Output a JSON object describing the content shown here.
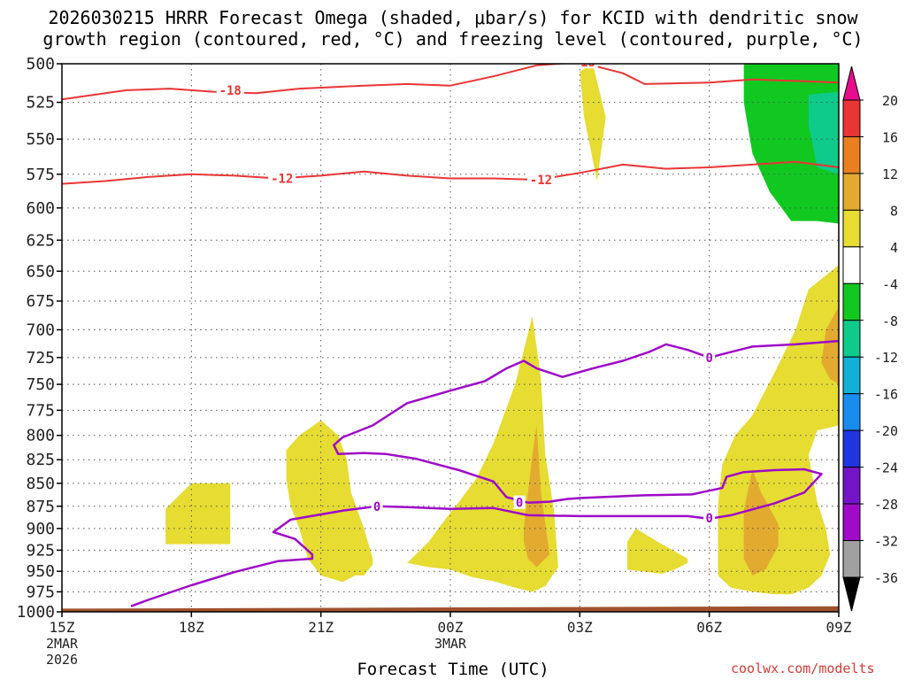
{
  "title_line1": "2026030215 HRRR Forecast Omega (shaded, μbar/s) for KCID with dendritic snow",
  "title_line2": "growth region (contoured, red, °C) and freezing level (contoured, purple, °C)",
  "xlabel": "Forecast Time (UTC)",
  "credit": "coolwx.com/modelts",
  "chart_data": {
    "type": "contour",
    "y_axis": {
      "label": "",
      "unit": "mb",
      "reversed": true,
      "range": [
        500,
        1000
      ],
      "ticks": [
        500,
        525,
        550,
        575,
        600,
        625,
        650,
        675,
        700,
        725,
        750,
        775,
        800,
        825,
        850,
        875,
        900,
        925,
        950,
        975,
        1000
      ],
      "scale": "log"
    },
    "x_axis": {
      "range_hours": [
        0,
        18
      ],
      "ticks": [
        {
          "hour": 0,
          "label": "15Z",
          "sub1": "2MAR",
          "sub2": "2026"
        },
        {
          "hour": 3,
          "label": "18Z",
          "sub1": "",
          "sub2": ""
        },
        {
          "hour": 6,
          "label": "21Z",
          "sub1": "",
          "sub2": ""
        },
        {
          "hour": 9,
          "label": "00Z",
          "sub1": "3MAR",
          "sub2": ""
        },
        {
          "hour": 12,
          "label": "03Z",
          "sub1": "",
          "sub2": ""
        },
        {
          "hour": 15,
          "label": "06Z",
          "sub1": "",
          "sub2": ""
        },
        {
          "hour": 18,
          "label": "09Z",
          "sub1": "",
          "sub2": ""
        }
      ],
      "grid": "dotted"
    },
    "colorbar": {
      "labels": [
        "20",
        "16",
        "12",
        "8",
        "4",
        "-4",
        "-8",
        "-12",
        "-16",
        "-20",
        "-24",
        "-28",
        "-32",
        "-36"
      ],
      "colors": [
        "#e60e8c",
        "#ea3535",
        "#ea7f20",
        "#e3aa30",
        "#e6dc32",
        "#ffffff",
        "#10c820",
        "#0ecb8c",
        "#12b0d6",
        "#1a8cf0",
        "#2035e0",
        "#7414c8",
        "#a00ac8",
        "#a0a0a0",
        "#000000"
      ]
    },
    "omega_shading": [
      {
        "level": "4 to 8",
        "color": "#e6dc32",
        "polygons": [
          [
            [
              2.4,
              878
            ],
            [
              3.0,
              850
            ],
            [
              3.9,
              850
            ],
            [
              3.9,
              918
            ],
            [
              2.4,
              918
            ]
          ],
          [
            [
              5.2,
              845
            ],
            [
              5.2,
              815
            ],
            [
              5.5,
              800
            ],
            [
              6.0,
              785
            ],
            [
              6.4,
              800
            ],
            [
              6.6,
              825
            ],
            [
              6.7,
              860
            ],
            [
              7.0,
              900
            ],
            [
              7.2,
              935
            ],
            [
              7.2,
              942
            ],
            [
              7.0,
              955
            ],
            [
              6.8,
              955
            ],
            [
              6.5,
              963
            ],
            [
              6.0,
              955
            ],
            [
              5.7,
              935
            ],
            [
              5.5,
              900
            ],
            [
              5.3,
              875
            ]
          ],
          [
            [
              8.0,
              940
            ],
            [
              8.2,
              930
            ],
            [
              8.5,
              915
            ],
            [
              8.8,
              895
            ],
            [
              9.2,
              870
            ],
            [
              9.6,
              845
            ],
            [
              10.0,
              808
            ],
            [
              10.5,
              750
            ],
            [
              10.9,
              688
            ],
            [
              11.1,
              745
            ],
            [
              11.2,
              820
            ],
            [
              11.4,
              880
            ],
            [
              11.5,
              945
            ],
            [
              11.2,
              968
            ],
            [
              10.9,
              975
            ],
            [
              10.5,
              970
            ],
            [
              10.0,
              962
            ],
            [
              9.5,
              957
            ],
            [
              9.0,
              948
            ],
            [
              8.5,
              945
            ],
            [
              8.2,
              942
            ]
          ],
          [
            [
              12.0,
              505
            ],
            [
              12.3,
              500
            ],
            [
              12.6,
              535
            ],
            [
              12.4,
              580
            ],
            [
              12.1,
              535
            ],
            [
              12.0,
              505
            ]
          ],
          [
            [
              13.1,
              948
            ],
            [
              13.1,
              915
            ],
            [
              13.3,
              900
            ],
            [
              13.8,
              915
            ],
            [
              14.5,
              935
            ],
            [
              14.5,
              940
            ],
            [
              14.2,
              948
            ],
            [
              13.9,
              953
            ]
          ],
          [
            [
              15.2,
              905
            ],
            [
              15.2,
              875
            ],
            [
              15.3,
              830
            ],
            [
              15.6,
              800
            ],
            [
              16.0,
              780
            ],
            [
              16.5,
              740
            ],
            [
              17.0,
              700
            ],
            [
              17.3,
              665
            ],
            [
              18.0,
              645
            ],
            [
              18.0,
              790
            ],
            [
              17.8,
              792
            ],
            [
              17.5,
              795
            ],
            [
              17.3,
              820
            ],
            [
              17.4,
              845
            ],
            [
              17.5,
              870
            ],
            [
              17.7,
              900
            ],
            [
              17.8,
              930
            ],
            [
              17.6,
              955
            ],
            [
              17.3,
              970
            ],
            [
              16.9,
              978
            ],
            [
              16.5,
              978
            ],
            [
              16.0,
              975
            ],
            [
              15.5,
              970
            ],
            [
              15.2,
              955
            ]
          ]
        ]
      },
      {
        "level": "8 to 12",
        "color": "#e3aa30",
        "polygons": [
          [
            [
              10.7,
              900
            ],
            [
              10.9,
              820
            ],
            [
              11.0,
              790
            ],
            [
              11.1,
              860
            ],
            [
              11.3,
              930
            ],
            [
              11.0,
              945
            ],
            [
              10.8,
              935
            ],
            [
              10.7,
              915
            ]
          ],
          [
            [
              15.8,
              935
            ],
            [
              15.8,
              880
            ],
            [
              16.0,
              835
            ],
            [
              16.2,
              860
            ],
            [
              16.6,
              895
            ],
            [
              16.6,
              920
            ],
            [
              16.3,
              948
            ],
            [
              16.0,
              955
            ]
          ],
          [
            [
              17.6,
              730
            ],
            [
              17.7,
              700
            ],
            [
              18.0,
              680
            ],
            [
              18.0,
              750
            ],
            [
              17.8,
              745
            ]
          ]
        ]
      },
      {
        "level": "-8 to -4",
        "color": "#10c820",
        "polygons": [
          [
            [
              15.8,
              500
            ],
            [
              18.0,
              500
            ],
            [
              18.0,
              612
            ],
            [
              17.5,
              610
            ],
            [
              16.9,
              610
            ],
            [
              16.4,
              588
            ],
            [
              16.0,
              560
            ],
            [
              15.8,
              525
            ]
          ]
        ]
      },
      {
        "level": "-12 to -8",
        "color": "#0ecb8c",
        "polygons": [
          [
            [
              17.3,
              520
            ],
            [
              18.0,
              518
            ],
            [
              18.0,
              575
            ],
            [
              17.5,
              570
            ],
            [
              17.3,
              540
            ]
          ]
        ]
      }
    ],
    "dgz_contours": [
      {
        "label": "-18",
        "color": "#ea3535",
        "points": [
          [
            0,
            523
          ],
          [
            0.5,
            521
          ],
          [
            1.5,
            517
          ],
          [
            2.5,
            516
          ],
          [
            3.5,
            518
          ],
          [
            4.5,
            519
          ],
          [
            5.5,
            516
          ],
          [
            7,
            514
          ],
          [
            8,
            513
          ],
          [
            9,
            514
          ],
          [
            10,
            508
          ],
          [
            11,
            501
          ],
          [
            12,
            499
          ],
          [
            13,
            506
          ],
          [
            13.5,
            513
          ],
          [
            15,
            512
          ],
          [
            16,
            510
          ],
          [
            17,
            511
          ],
          [
            18,
            512
          ]
        ],
        "label_positions": [
          [
            3.9,
            517
          ],
          [
            12.1,
            499
          ]
        ]
      },
      {
        "label": "-12",
        "color": "#ea3535",
        "points": [
          [
            0,
            582
          ],
          [
            1,
            580
          ],
          [
            2,
            577
          ],
          [
            3,
            575
          ],
          [
            4,
            576
          ],
          [
            5,
            578
          ],
          [
            6,
            576
          ],
          [
            7,
            573
          ],
          [
            8,
            576
          ],
          [
            9,
            578
          ],
          [
            10,
            578
          ],
          [
            11,
            579
          ],
          [
            12,
            574
          ],
          [
            13,
            568
          ],
          [
            14,
            571
          ],
          [
            15,
            570
          ],
          [
            16,
            568
          ],
          [
            17,
            566
          ],
          [
            18,
            570
          ]
        ],
        "label_positions": [
          [
            5.1,
            578
          ],
          [
            11.1,
            579
          ]
        ]
      }
    ],
    "freezing_level_contours": [
      {
        "label": "0",
        "color": "#9e0ac8",
        "points": [
          [
            1.6,
            993
          ],
          [
            2,
            985
          ],
          [
            3,
            967
          ],
          [
            4,
            951
          ],
          [
            5,
            938
          ],
          [
            5.8,
            935
          ],
          [
            5.8,
            930
          ],
          [
            5.4,
            912
          ],
          [
            4.9,
            904
          ],
          [
            5.3,
            890
          ],
          [
            6.5,
            880
          ],
          [
            7.3,
            875
          ],
          [
            8,
            876
          ],
          [
            9,
            878
          ],
          [
            10,
            877
          ],
          [
            10.8,
            885
          ],
          [
            12,
            886
          ],
          [
            13,
            886
          ],
          [
            14.5,
            886
          ],
          [
            15,
            889
          ],
          [
            15.5,
            885
          ],
          [
            16.5,
            872
          ],
          [
            17.2,
            860
          ],
          [
            17.6,
            840
          ],
          [
            17.2,
            835
          ],
          [
            16.5,
            836
          ],
          [
            15.8,
            838
          ],
          [
            15.4,
            843
          ],
          [
            15.3,
            855
          ],
          [
            15.0,
            858
          ],
          [
            14.6,
            862
          ],
          [
            13.5,
            863
          ],
          [
            12,
            866
          ],
          [
            11.7,
            867
          ],
          [
            11.3,
            870
          ],
          [
            10.8,
            871
          ],
          [
            10.3,
            865
          ],
          [
            10.0,
            848
          ],
          [
            9.6,
            842
          ],
          [
            9.2,
            836
          ],
          [
            8.2,
            824
          ],
          [
            7.5,
            819
          ],
          [
            7.0,
            818
          ],
          [
            6.4,
            819
          ],
          [
            6.3,
            810
          ],
          [
            6.5,
            802
          ],
          [
            7.2,
            790
          ],
          [
            8.0,
            768
          ],
          [
            9.0,
            756
          ],
          [
            9.8,
            747
          ],
          [
            10.3,
            735
          ],
          [
            10.7,
            728
          ],
          [
            11.0,
            735
          ],
          [
            11.6,
            743
          ],
          [
            12.3,
            735
          ],
          [
            13.0,
            728
          ],
          [
            13.6,
            720
          ],
          [
            14.0,
            713
          ],
          [
            14.5,
            718
          ],
          [
            15,
            725
          ],
          [
            15.5,
            720
          ],
          [
            16,
            715
          ],
          [
            17,
            713
          ],
          [
            18,
            710
          ]
        ],
        "label_positions": [
          [
            7.3,
            875
          ],
          [
            10.6,
            871
          ],
          [
            15.0,
            888
          ],
          [
            15.0,
            725
          ]
        ]
      }
    ],
    "ground_fill": {
      "color": "#a0522d",
      "bottom_mb": 1000,
      "top_mb_left": 996,
      "top_mb_right": 993
    }
  }
}
